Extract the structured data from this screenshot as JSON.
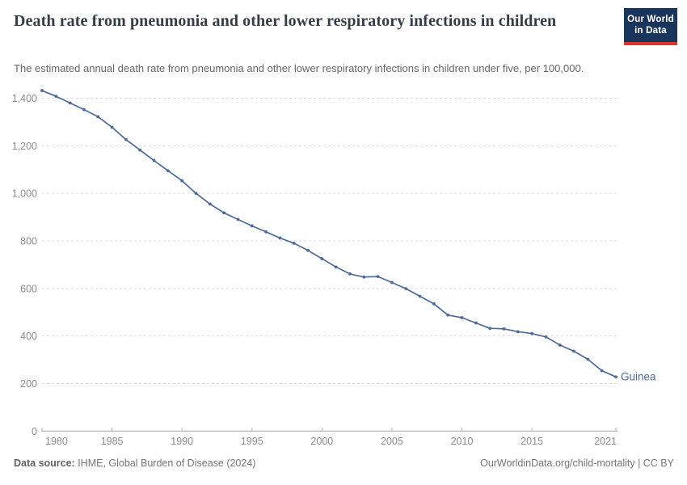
{
  "header": {
    "title": "Death rate from pneumonia and other lower respiratory infections in children",
    "subtitle": "The estimated annual death rate from pneumonia and other lower respiratory infections in children under five, per 100,000."
  },
  "logo": {
    "line1": "Our World",
    "line2": "in Data"
  },
  "chart_data": {
    "type": "line",
    "title": "Death rate from pneumonia and other lower respiratory infections in children",
    "xlabel": "",
    "ylabel": "",
    "x": [
      1980,
      1981,
      1982,
      1983,
      1984,
      1985,
      1986,
      1987,
      1988,
      1989,
      1990,
      1991,
      1992,
      1993,
      1994,
      1995,
      1996,
      1997,
      1998,
      1999,
      2000,
      2001,
      2002,
      2003,
      2004,
      2005,
      2006,
      2007,
      2008,
      2009,
      2010,
      2011,
      2012,
      2013,
      2014,
      2015,
      2016,
      2017,
      2018,
      2019,
      2020,
      2021
    ],
    "series": [
      {
        "name": "Guinea",
        "color": "#4c6a9c",
        "values": [
          1432,
          1408,
          1380,
          1352,
          1322,
          1278,
          1226,
          1182,
          1138,
          1095,
          1053,
          1000,
          955,
          918,
          890,
          863,
          838,
          812,
          790,
          760,
          725,
          690,
          661,
          648,
          650,
          625,
          599,
          567,
          535,
          488,
          477,
          455,
          432,
          430,
          418,
          410,
          396,
          362,
          336,
          302,
          254,
          228
        ]
      }
    ],
    "xlim": [
      1980,
      2021
    ],
    "ylim": [
      0,
      1450
    ],
    "xticks": [
      1980,
      1985,
      1990,
      1995,
      2000,
      2005,
      2010,
      2015,
      2021
    ],
    "yticks": [
      0,
      200,
      400,
      600,
      800,
      1000,
      1200,
      1400
    ],
    "grid": "horizontal-dashed",
    "legend_position": "end-of-line",
    "end_label": "Guinea",
    "colors": {
      "line": "#4c6a9c",
      "gridline": "#dcdcdc",
      "axis": "#a3a3a3",
      "tick_text": "#8c8c8c"
    }
  },
  "footer": {
    "source_label": "Data source:",
    "source_text": " IHME, Global Burden of Disease (2024)",
    "credit": "OurWorldinData.org/child-mortality | CC BY"
  }
}
